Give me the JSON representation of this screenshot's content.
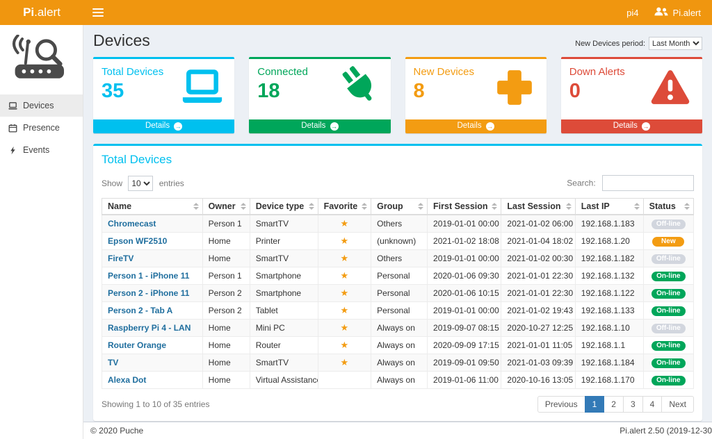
{
  "header": {
    "brand_bold": "Pi",
    "brand_rest": ".alert",
    "host": "pi4",
    "user": "Pi.alert"
  },
  "sidebar": {
    "items": [
      {
        "id": "devices",
        "label": "Devices",
        "icon": "monitor",
        "active": true
      },
      {
        "id": "presence",
        "label": "Presence",
        "icon": "calendar",
        "active": false
      },
      {
        "id": "events",
        "label": "Events",
        "icon": "bolt",
        "active": false
      }
    ]
  },
  "page": {
    "title": "Devices",
    "period_label": "New Devices period:",
    "period_value": "Last Month"
  },
  "infoboxes": [
    {
      "id": "total-devices",
      "label": "Total Devices",
      "value": "35",
      "color": "#00c0ef",
      "icon": "laptop",
      "details_label": "Details"
    },
    {
      "id": "connected",
      "label": "Connected",
      "value": "18",
      "color": "#00a65a",
      "icon": "plug",
      "details_label": "Details"
    },
    {
      "id": "new-devices",
      "label": "New Devices",
      "value": "8",
      "color": "#f39c12",
      "icon": "plus",
      "details_label": "Details"
    },
    {
      "id": "down-alerts",
      "label": "Down Alerts",
      "value": "0",
      "color": "#dd4b39",
      "icon": "warning",
      "details_label": "Details"
    }
  ],
  "table_panel": {
    "title": "Total Devices",
    "show_label": "Show",
    "entries_label": "entries",
    "length_value": "10",
    "search_label": "Search:",
    "columns": [
      "Name",
      "Owner",
      "Device type",
      "Favorite",
      "Group",
      "First Session",
      "Last Session",
      "Last IP",
      "Status"
    ],
    "rows": [
      {
        "name": "Chromecast",
        "owner": "Person 1",
        "type": "SmartTV",
        "favorite": true,
        "group": "Others",
        "first_session": "2019-01-01  00:00",
        "last_session": "2021-01-02  06:00",
        "last_ip": "192.168.1.183",
        "status": "Off-line",
        "status_type": "offline"
      },
      {
        "name": "Epson WF2510",
        "owner": "Home",
        "type": "Printer",
        "favorite": true,
        "group": "(unknown)",
        "first_session": "2021-01-02  18:08",
        "last_session": "2021-01-04  18:02",
        "last_ip": "192.168.1.20",
        "status": "New",
        "status_type": "new"
      },
      {
        "name": "FireTV",
        "owner": "Home",
        "type": "SmartTV",
        "favorite": true,
        "group": "Others",
        "first_session": "2019-01-01  00:00",
        "last_session": "2021-01-02  00:30",
        "last_ip": "192.168.1.182",
        "status": "Off-line",
        "status_type": "offline"
      },
      {
        "name": "Person 1 - iPhone 11",
        "owner": "Person 1",
        "type": "Smartphone",
        "favorite": true,
        "group": "Personal",
        "first_session": "2020-01-06  09:30",
        "last_session": "2021-01-01  22:30",
        "last_ip": "192.168.1.132",
        "status": "On-line",
        "status_type": "online"
      },
      {
        "name": "Person 2 - iPhone 11",
        "owner": "Person 2",
        "type": "Smartphone",
        "favorite": true,
        "group": "Personal",
        "first_session": "2020-01-06  10:15",
        "last_session": "2021-01-01  22:30",
        "last_ip": "192.168.1.122",
        "status": "On-line",
        "status_type": "online"
      },
      {
        "name": "Person 2 - Tab A",
        "owner": "Person 2",
        "type": "Tablet",
        "favorite": true,
        "group": "Personal",
        "first_session": "2019-01-01  00:00",
        "last_session": "2021-01-02  19:43",
        "last_ip": "192.168.1.133",
        "status": "On-line",
        "status_type": "online"
      },
      {
        "name": "Raspberry Pi 4 - LAN",
        "owner": "Home",
        "type": "Mini PC",
        "favorite": true,
        "group": "Always on",
        "first_session": "2019-09-07  08:15",
        "last_session": "2020-10-27  12:25",
        "last_ip": "192.168.1.10",
        "status": "Off-line",
        "status_type": "offline"
      },
      {
        "name": "Router Orange",
        "owner": "Home",
        "type": "Router",
        "favorite": true,
        "group": "Always on",
        "first_session": "2020-09-09  17:15",
        "last_session": "2021-01-01  11:05",
        "last_ip": "192.168.1.1",
        "status": "On-line",
        "status_type": "online"
      },
      {
        "name": "TV",
        "owner": "Home",
        "type": "SmartTV",
        "favorite": true,
        "group": "Always on",
        "first_session": "2019-09-01  09:50",
        "last_session": "2021-01-03  09:39",
        "last_ip": "192.168.1.184",
        "status": "On-line",
        "status_type": "online"
      },
      {
        "name": "Alexa Dot",
        "owner": "Home",
        "type": "Virtual Assistance",
        "favorite": false,
        "group": "Always on",
        "first_session": "2019-01-06  11:00",
        "last_session": "2020-10-16  13:05",
        "last_ip": "192.168.1.170",
        "status": "On-line",
        "status_type": "online"
      }
    ],
    "footer_info": "Showing 1 to 10 of 35 entries",
    "pagination": [
      {
        "label": "Previous",
        "active": false
      },
      {
        "label": "1",
        "active": true
      },
      {
        "label": "2",
        "active": false
      },
      {
        "label": "3",
        "active": false
      },
      {
        "label": "4",
        "active": false
      },
      {
        "label": "Next",
        "active": false
      }
    ]
  },
  "footer": {
    "copyright": "© 2020 Puche",
    "version": "Pi.alert  2.50  (2019-12-30"
  }
}
